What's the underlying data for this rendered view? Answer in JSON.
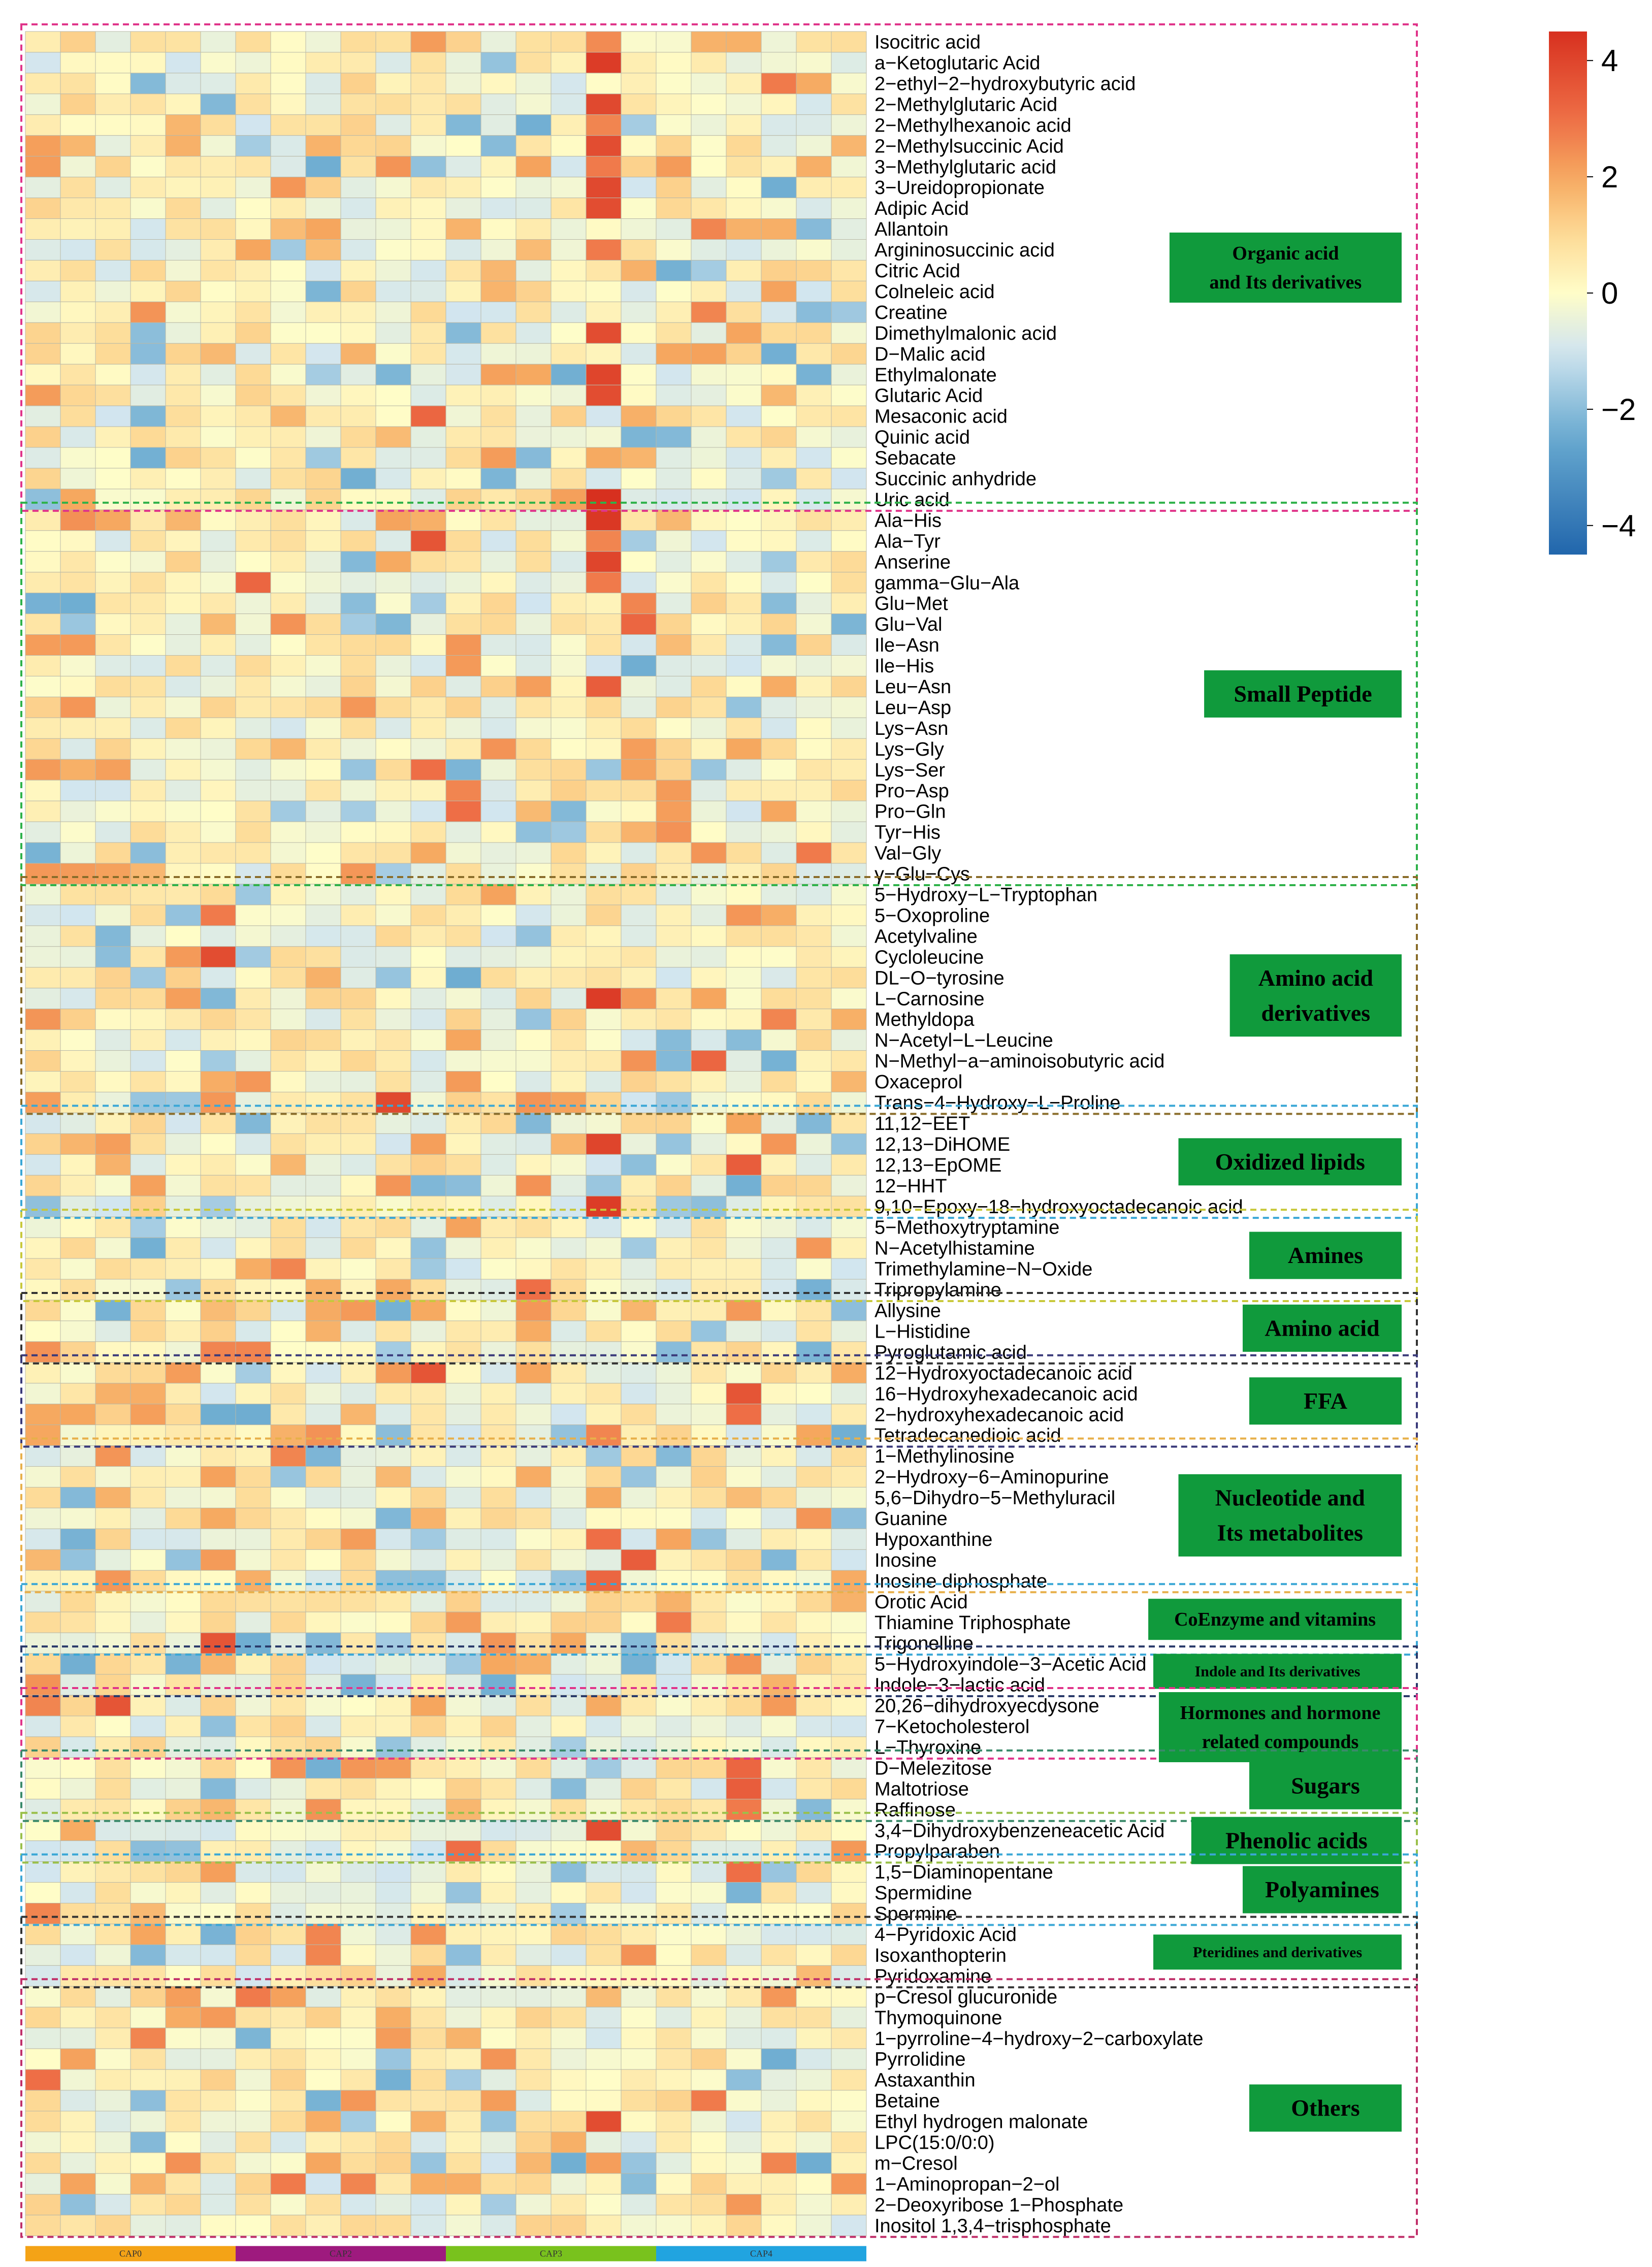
{
  "chart_data": {
    "type": "heatmap",
    "title": "",
    "color_scale": {
      "min": -4.5,
      "max": 4.5,
      "ticks": [
        4,
        2,
        0,
        -2,
        -4
      ],
      "tick_labels": [
        "4",
        "2",
        "0",
        "−2",
        "−4"
      ],
      "colors": [
        "#2166ac",
        "#67a9cf",
        "#d1e5f0",
        "#ffffbf",
        "#fdd08a",
        "#f4a05a",
        "#e34a33",
        "#d7301f"
      ]
    },
    "column_groups": [
      {
        "name": "CAP0",
        "count": 6,
        "color": "#f4a316"
      },
      {
        "name": "CAP2",
        "count": 6,
        "color": "#9e1a7e"
      },
      {
        "name": "CAP3",
        "count": 6,
        "color": "#79c21d"
      },
      {
        "name": "CAP4",
        "count": 6,
        "color": "#21a4e0"
      }
    ],
    "n_columns": 24,
    "categories": [
      {
        "name": "Organic acid\nand Its derivatives",
        "lines": [
          "Organic acid",
          "and Its derivatives"
        ],
        "box_color": "#e0348a",
        "rows": [
          "Isocitric acid",
          "a−Ketoglutaric Acid",
          "2−ethyl−2−hydroxybutyric acid",
          "2−Methylglutaric Acid",
          "2−Methylhexanoic acid",
          "2−Methylsuccinic Acid",
          "3−Methylglutaric acid",
          "3−Ureidopropionate",
          "Adipic Acid",
          "Allantoin",
          "Argininosuccinic acid",
          "Citric Acid",
          "Colneleic acid",
          "Creatine",
          "Dimethylmalonic acid",
          "D−Malic acid",
          "Ethylmalonate",
          "Glutaric Acid",
          "Mesaconic acid",
          "Quinic acid",
          "Sebacate",
          "Succinic anhydride",
          "Uric acid"
        ],
        "hot": [
          [
            1,
            16,
            4.2
          ],
          [
            3,
            16,
            3.9
          ],
          [
            4,
            16,
            2.6
          ],
          [
            5,
            16,
            3.8
          ],
          [
            6,
            16,
            2.8
          ],
          [
            7,
            16,
            3.9
          ],
          [
            8,
            16,
            3.8
          ],
          [
            2,
            21,
            2.8
          ],
          [
            9,
            19,
            2.6
          ],
          [
            10,
            16,
            2.8
          ],
          [
            13,
            19,
            2.6
          ],
          [
            14,
            16,
            3.8
          ],
          [
            16,
            16,
            4.0
          ],
          [
            17,
            16,
            3.8
          ],
          [
            18,
            11,
            3.2
          ],
          [
            22,
            16,
            4.5
          ],
          [
            0,
            11,
            2.2
          ],
          [
            0,
            16,
            2.5
          ]
        ]
      },
      {
        "name": "Small Peptide",
        "lines": [
          "Small Peptide"
        ],
        "box_color": "#2fb24a",
        "rows": [
          "Ala−His",
          "Ala−Tyr",
          "Anserine",
          "gamma−Glu−Ala",
          "Glu−Met",
          "Glu−Val",
          "Ile−Asn",
          "Ile−His",
          "Leu−Asn",
          "Leu−Asp",
          "Lys−Asn",
          "Lys−Gly",
          "Lys−Ser",
          "Pro−Asp",
          "Pro−Gln",
          "Tyr−His",
          "Val−Gly",
          "γ−Glu−Cys"
        ],
        "hot": [
          [
            0,
            16,
            4.3
          ],
          [
            1,
            11,
            3.6
          ],
          [
            1,
            16,
            2.6
          ],
          [
            2,
            16,
            4.0
          ],
          [
            3,
            6,
            3.2
          ],
          [
            3,
            16,
            2.8
          ],
          [
            4,
            17,
            2.6
          ],
          [
            5,
            17,
            3.2
          ],
          [
            8,
            16,
            3.4
          ],
          [
            12,
            11,
            3.0
          ],
          [
            13,
            12,
            2.6
          ],
          [
            14,
            12,
            3.0
          ],
          [
            16,
            22,
            2.8
          ]
        ]
      },
      {
        "name": "Amino acid\nderivatives",
        "lines": [
          "Amino acid",
          "derivatives"
        ],
        "box_color": "#8a6d2a",
        "rows": [
          "5−Hydroxy−L−Tryptophan",
          "5−Oxoproline",
          "Acetylvaline",
          "Cycloleucine",
          "DL−O−tyrosine",
          "L−Carnosine",
          "Methyldopa",
          "N−Acetyl−L−Leucine",
          "N−Methyl−a−aminoisobutyric acid",
          "Oxaceprol",
          "Trans−4−Hydroxy−L−Proline"
        ],
        "hot": [
          [
            1,
            5,
            2.8
          ],
          [
            3,
            5,
            3.8
          ],
          [
            5,
            16,
            4.2
          ],
          [
            6,
            21,
            2.6
          ],
          [
            8,
            19,
            3.2
          ],
          [
            10,
            10,
            3.9
          ]
        ]
      },
      {
        "name": "Oxidized lipids",
        "lines": [
          "Oxidized lipids"
        ],
        "box_color": "#3aa7d6",
        "rows": [
          "11,12−EET",
          "12,13−DiHOME",
          "12,13−EpOME",
          "12−HHT",
          "9,10−Epoxy−18−hydroxyoctadecanoic acid"
        ],
        "hot": [
          [
            1,
            16,
            4.0
          ],
          [
            2,
            20,
            3.4
          ],
          [
            4,
            16,
            4.2
          ]
        ]
      },
      {
        "name": "Amines",
        "lines": [
          "Amines"
        ],
        "box_color": "#c8c83a",
        "rows": [
          "5−Methoxytryptamine",
          "N−Acetylhistamine",
          "Trimethylamine−N−Oxide",
          "Tripropylamine"
        ],
        "hot": [
          [
            2,
            7,
            2.6
          ],
          [
            3,
            14,
            3.0
          ]
        ]
      },
      {
        "name": "Amino acid",
        "lines": [
          "Amino acid"
        ],
        "box_color": "#333333",
        "rows": [
          "Allysine",
          "L−Histidine",
          "Pyroglutamic acid"
        ],
        "hot": [
          [
            2,
            5,
            2.6
          ],
          [
            2,
            6,
            2.6
          ]
        ]
      },
      {
        "name": "FFA",
        "lines": [
          "FFA"
        ],
        "box_color": "#3a3a7a",
        "rows": [
          "12−Hydroxyoctadecanoic acid",
          "16−Hydroxyhexadecanoic acid",
          "2−hydroxyhexadecanoic acid",
          "Tetradecanedioic acid"
        ],
        "hot": [
          [
            0,
            11,
            3.6
          ],
          [
            1,
            20,
            3.6
          ],
          [
            2,
            20,
            3.0
          ],
          [
            3,
            16,
            2.6
          ]
        ]
      },
      {
        "name": "Nucleotide and\nIts metabolites",
        "lines": [
          "Nucleotide and",
          "Its metabolites"
        ],
        "box_color": "#e8b04a",
        "rows": [
          "1−Methylinosine",
          "2−Hydroxy−6−Aminopurine",
          "5,6−Dihydro−5−Methyluracil",
          "Guanine",
          "Hypoxanthine",
          "Inosine",
          "Inosine diphosphate"
        ],
        "hot": [
          [
            0,
            7,
            2.6
          ],
          [
            4,
            16,
            3.0
          ],
          [
            5,
            17,
            3.4
          ],
          [
            6,
            16,
            3.2
          ]
        ]
      },
      {
        "name": "CoEnzyme and vitamins",
        "lines": [
          "CoEnzyme and vitamins"
        ],
        "box_color": "#3aa7d6",
        "rows": [
          "Orotic Acid",
          "Thiamine Triphosphate",
          "Trigonelline"
        ],
        "hot": [
          [
            1,
            18,
            2.8
          ],
          [
            2,
            5,
            3.6
          ]
        ]
      },
      {
        "name": "Indole and Its derivatives",
        "lines": [
          "Indole and Its derivatives"
        ],
        "box_color": "#2a3a6a",
        "rows": [
          "5−Hydroxyindole−3−Acetic Acid",
          "Indole−3−lactic acid"
        ],
        "hot": []
      },
      {
        "name": "Hormones and hormone\nrelated compounds",
        "lines": [
          "Hormones and hormone",
          "related compounds"
        ],
        "box_color": "#e0348a",
        "rows": [
          "20,26−dihydroxyecdysone",
          "7−Ketocholesterol",
          "L−Thyroxine"
        ],
        "hot": [
          [
            0,
            2,
            3.6
          ],
          [
            0,
            0,
            2.6
          ]
        ]
      },
      {
        "name": "Sugars",
        "lines": [
          "Sugars"
        ],
        "box_color": "#3a8a6a",
        "rows": [
          "D−Melezitose",
          "Maltotriose",
          "Raffinose"
        ],
        "hot": [
          [
            0,
            20,
            3.2
          ],
          [
            1,
            20,
            3.4
          ],
          [
            2,
            20,
            2.8
          ]
        ]
      },
      {
        "name": "Phenolic acids",
        "lines": [
          "Phenolic acids"
        ],
        "box_color": "#9ac04a",
        "rows": [
          "3,4−Dihydroxybenzeneacetic Acid",
          "Propylparaben"
        ],
        "hot": [
          [
            0,
            16,
            3.8
          ],
          [
            1,
            12,
            3.0
          ]
        ]
      },
      {
        "name": "Polyamines",
        "lines": [
          "Polyamines"
        ],
        "box_color": "#3aa7d6",
        "rows": [
          "1,5−Diaminopentane",
          "Spermidine",
          "Spermine"
        ],
        "hot": [
          [
            0,
            20,
            3.0
          ],
          [
            2,
            0,
            2.6
          ]
        ]
      },
      {
        "name": "Pteridines and derivatives",
        "lines": [
          "Pteridines and derivatives"
        ],
        "box_color": "#333333",
        "rows": [
          "4−Pyridoxic Acid",
          "Isoxanthopterin",
          "Pyridoxamine"
        ],
        "hot": [
          [
            0,
            8,
            2.6
          ],
          [
            1,
            8,
            2.6
          ]
        ]
      },
      {
        "name": "Others",
        "lines": [
          "Others"
        ],
        "box_color": "#c0306a",
        "rows": [
          "p−Cresol glucuronide",
          "Thymoquinone",
          "1−pyrroline−4−hydroxy−2−carboxylate",
          "Pyrrolidine",
          "Astaxanthin",
          "Betaine",
          "Ethyl hydrogen malonate",
          "LPC(15:0/0:0)",
          "m−Cresol",
          "1−Aminopropan−2−ol",
          "2−Deoxyribose 1−Phosphate",
          "Inositol 1,3,4−trisphosphate"
        ],
        "hot": [
          [
            0,
            6,
            2.8
          ],
          [
            2,
            3,
            2.6
          ],
          [
            4,
            0,
            3.0
          ],
          [
            5,
            19,
            2.8
          ],
          [
            6,
            16,
            3.8
          ],
          [
            8,
            21,
            2.6
          ],
          [
            9,
            7,
            2.8
          ],
          [
            9,
            9,
            2.6
          ]
        ]
      }
    ]
  }
}
